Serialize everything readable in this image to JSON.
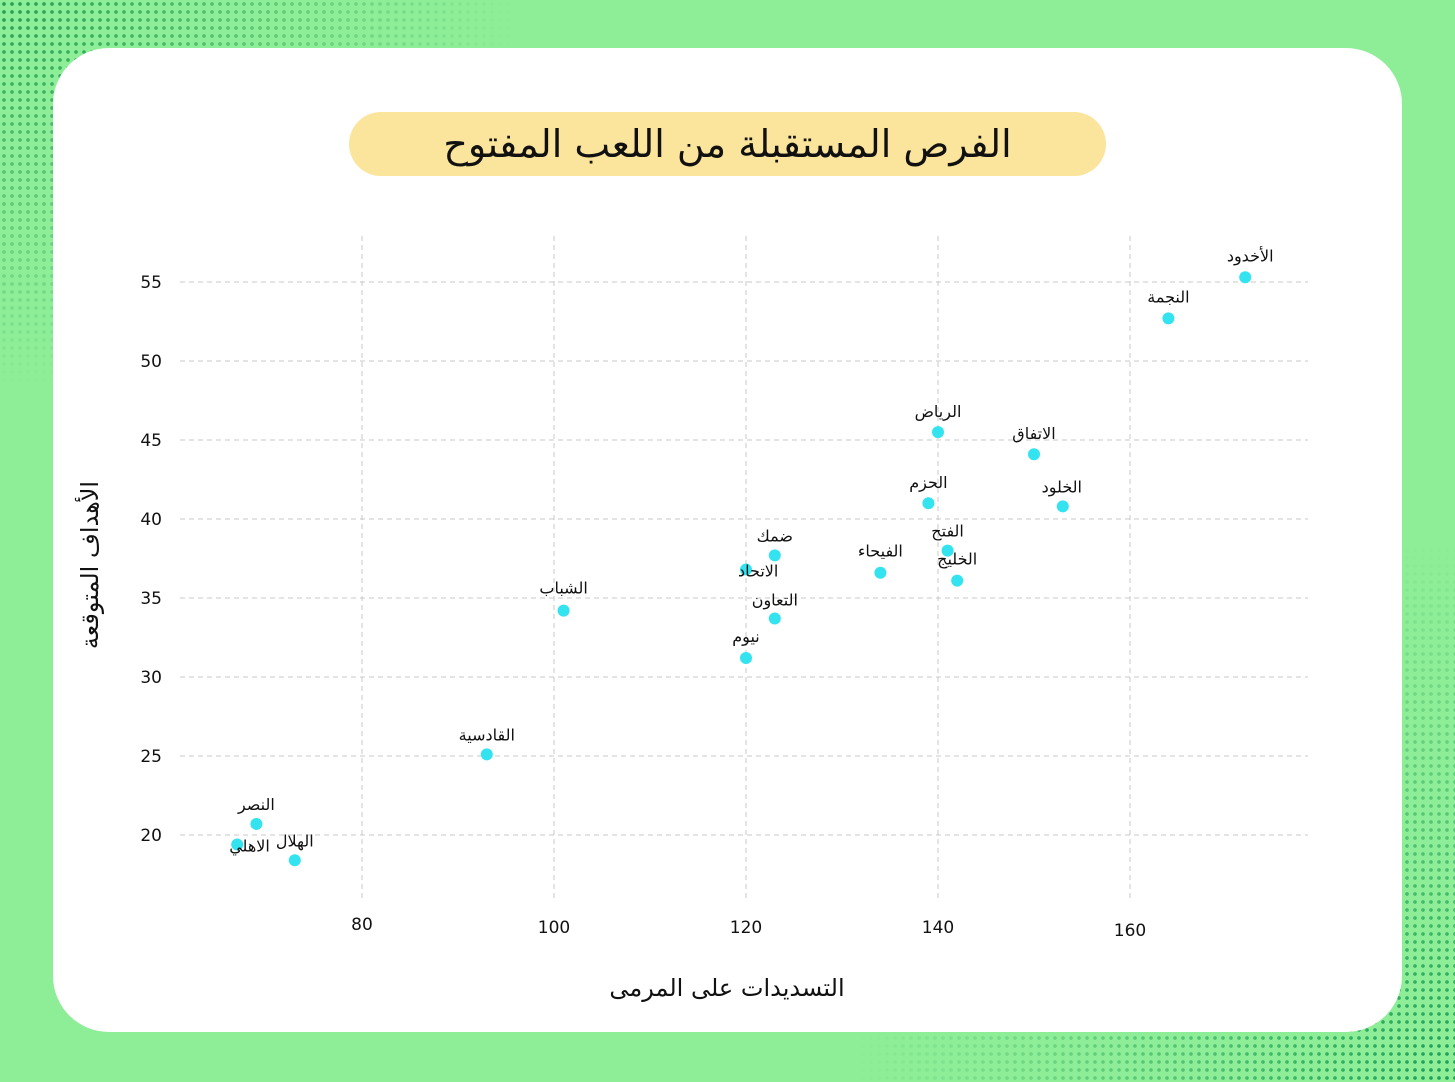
{
  "chart_data": {
    "type": "scatter",
    "title": "الفرص المستقبلة من اللعب المفتوح",
    "xlabel": "التسديدات على المرمى",
    "ylabel": "الأهداف المتوقعة",
    "xlim": [
      60,
      180
    ],
    "ylim": [
      15,
      58
    ],
    "xticks": [
      80,
      100,
      120,
      140,
      160
    ],
    "yticks": [
      20,
      25,
      30,
      35,
      40,
      45,
      50,
      55
    ],
    "grid": true,
    "point_color": "#33e3f0",
    "points": [
      {
        "label": "الأخدود",
        "x": 172,
        "y": 55.3
      },
      {
        "label": "النجمة",
        "x": 164,
        "y": 52.7
      },
      {
        "label": "الرياض",
        "x": 140,
        "y": 45.5
      },
      {
        "label": "الاتفاق",
        "x": 150,
        "y": 44.1
      },
      {
        "label": "الحزم",
        "x": 139,
        "y": 41.0
      },
      {
        "label": "الخلود",
        "x": 153,
        "y": 40.8
      },
      {
        "label": "الفتح",
        "x": 141,
        "y": 38.0
      },
      {
        "label": "ضمك",
        "x": 123,
        "y": 37.7
      },
      {
        "label": "الاتحاد",
        "x": 120,
        "y": 36.8
      },
      {
        "label": "الفيحاء",
        "x": 134,
        "y": 36.6
      },
      {
        "label": "الخليج",
        "x": 142,
        "y": 36.1
      },
      {
        "label": "الشباب",
        "x": 101,
        "y": 34.2
      },
      {
        "label": "التعاون",
        "x": 123,
        "y": 33.7
      },
      {
        "label": "نيوم",
        "x": 120,
        "y": 31.2
      },
      {
        "label": "القادسية",
        "x": 93,
        "y": 25.1
      },
      {
        "label": "النصر",
        "x": 69,
        "y": 20.7
      },
      {
        "label": "الاهلي",
        "x": 67,
        "y": 19.4
      },
      {
        "label": "الهلال",
        "x": 73,
        "y": 18.4
      }
    ]
  }
}
